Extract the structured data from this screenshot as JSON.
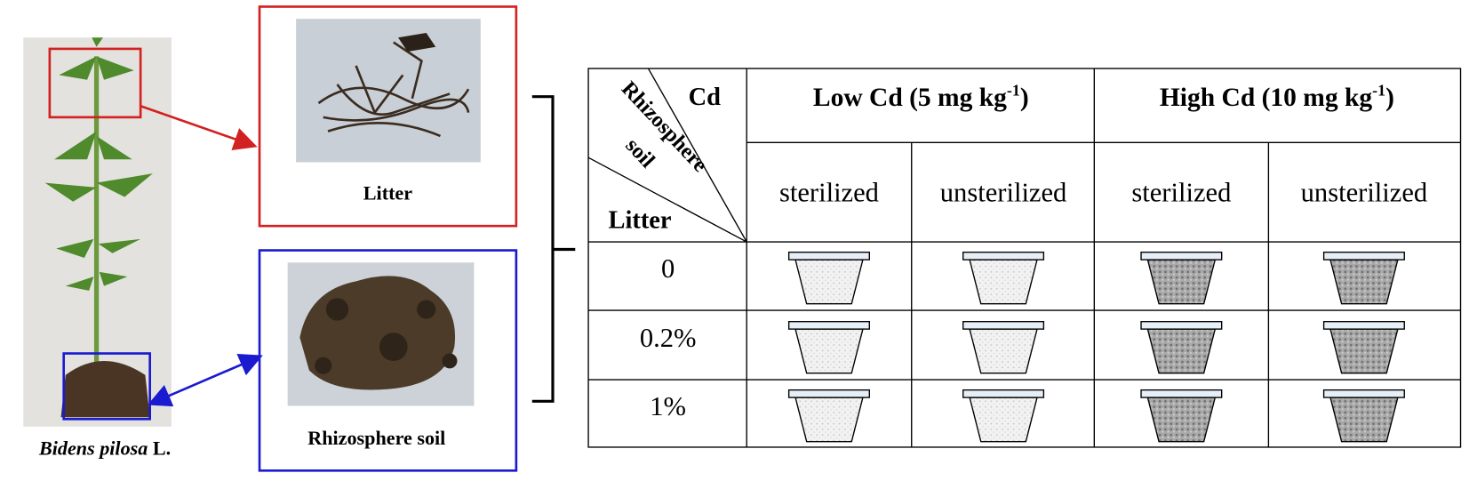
{
  "plant": {
    "caption_italic": "Bidens pilosa",
    "caption_rest": "L."
  },
  "litter_panel": {
    "label": "Litter"
  },
  "soil_panel": {
    "label": "Rhizosphere soil"
  },
  "table": {
    "corner": {
      "top": "Cd",
      "diagonal": [
        "Rhizosphere",
        "soil"
      ],
      "bottom": "Litter"
    },
    "groups": [
      {
        "text": "Low Cd (5 mg kg",
        "sup": "-1",
        "close": ")"
      },
      {
        "text": "High Cd (10 mg kg",
        "sup": "-1",
        "close": ")"
      }
    ],
    "subheaders": [
      "sterilized",
      "unsterilized",
      "sterilized",
      "unsterilized"
    ],
    "rows": [
      "0",
      "0.2%",
      "1%"
    ]
  }
}
